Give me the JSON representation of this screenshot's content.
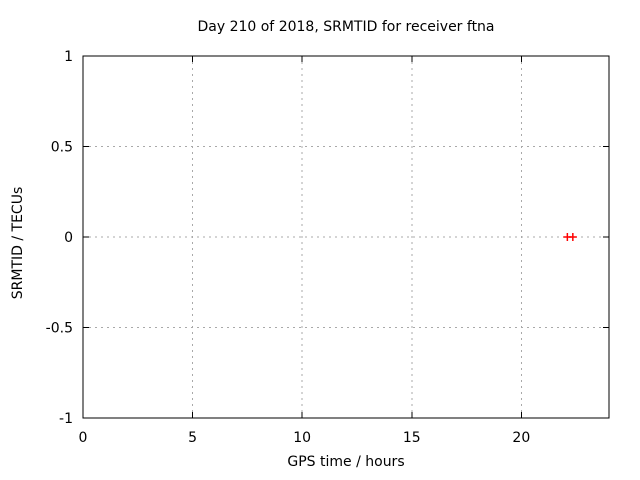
{
  "figure": {
    "background": "#ffffff"
  },
  "chart_data": {
    "type": "scatter",
    "title": "Day 210 of 2018, SRMTID for receiver ftna",
    "xlabel": "GPS time / hours",
    "ylabel": "SRMTID / TECUs",
    "xlim": [
      0,
      24
    ],
    "ylim": [
      -1,
      1
    ],
    "x_ticks": {
      "values": [
        0,
        5,
        10,
        15,
        20
      ],
      "labels": [
        "0",
        "5",
        "10",
        "15",
        "20"
      ]
    },
    "y_ticks": {
      "values": [
        1,
        0.5,
        0,
        -0.5,
        -1
      ],
      "labels": [
        "1",
        "0.5",
        "0",
        "-0.5",
        "-1"
      ]
    },
    "grid": {
      "show": true,
      "style": "dashed",
      "color": "#a9a9a9"
    },
    "legend": "none",
    "axis_color": "#000000",
    "text_color": "#000000",
    "series": [
      {
        "name": "SRMTID",
        "marker": "plus",
        "color": "#ff0000",
        "points": [
          {
            "x": 22.1,
            "y": 0
          },
          {
            "x": 22.35,
            "y": 0
          }
        ]
      }
    ]
  }
}
